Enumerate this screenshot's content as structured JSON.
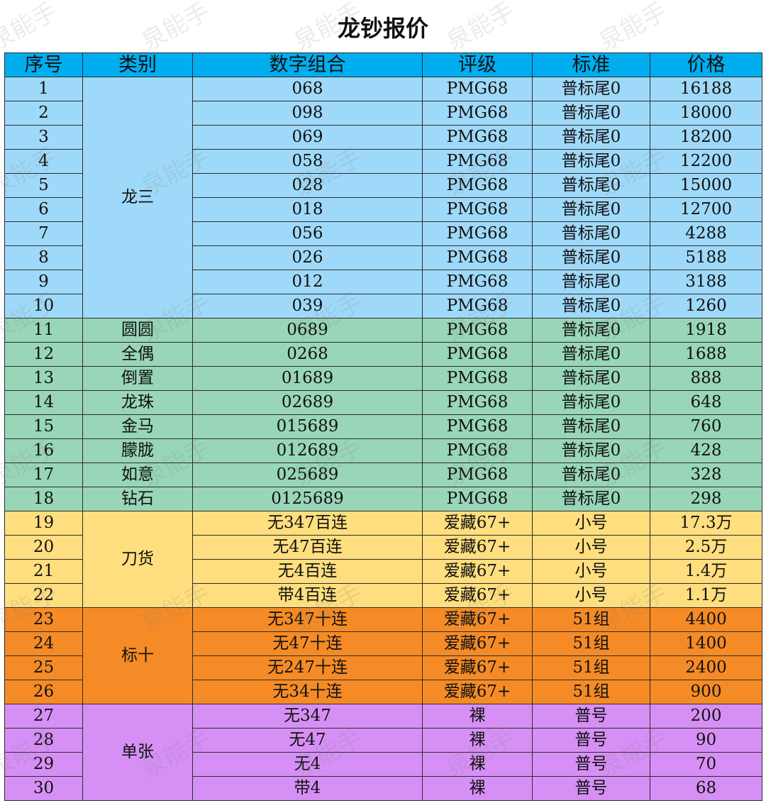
{
  "title": "龙钞报价",
  "watermark": "泉能手",
  "headers": [
    "序号",
    "类别",
    "数字组合",
    "评级",
    "标准",
    "价格"
  ],
  "colors": {
    "header": "#00aeef",
    "blue": "#9fd9f9",
    "green": "#98d6b7",
    "yellow": "#fede7e",
    "orange": "#f58b26",
    "purple": "#d690f5"
  },
  "groups": [
    {
      "category": "龙三",
      "color": "blue",
      "category_merged": true,
      "rows": [
        {
          "no": "1",
          "combo": "068",
          "grade": "PMG68",
          "standard": "普标尾0",
          "price": "16188"
        },
        {
          "no": "2",
          "combo": "098",
          "grade": "PMG68",
          "standard": "普标尾0",
          "price": "18000"
        },
        {
          "no": "3",
          "combo": "069",
          "grade": "PMG68",
          "standard": "普标尾0",
          "price": "18200"
        },
        {
          "no": "4",
          "combo": "058",
          "grade": "PMG68",
          "standard": "普标尾0",
          "price": "12200"
        },
        {
          "no": "5",
          "combo": "028",
          "grade": "PMG68",
          "standard": "普标尾0",
          "price": "15000"
        },
        {
          "no": "6",
          "combo": "018",
          "grade": "PMG68",
          "standard": "普标尾0",
          "price": "12700"
        },
        {
          "no": "7",
          "combo": "056",
          "grade": "PMG68",
          "standard": "普标尾0",
          "price": "4288"
        },
        {
          "no": "8",
          "combo": "026",
          "grade": "PMG68",
          "standard": "普标尾0",
          "price": "5188"
        },
        {
          "no": "9",
          "combo": "012",
          "grade": "PMG68",
          "standard": "普标尾0",
          "price": "3188"
        },
        {
          "no": "10",
          "combo": "039",
          "grade": "PMG68",
          "standard": "普标尾0",
          "price": "1260"
        }
      ]
    },
    {
      "category": "",
      "color": "green",
      "category_merged": false,
      "rows": [
        {
          "no": "11",
          "cat": "圆圆",
          "combo": "0689",
          "grade": "PMG68",
          "standard": "普标尾0",
          "price": "1918"
        },
        {
          "no": "12",
          "cat": "全偶",
          "combo": "0268",
          "grade": "PMG68",
          "standard": "普标尾0",
          "price": "1688"
        },
        {
          "no": "13",
          "cat": "倒置",
          "combo": "01689",
          "grade": "PMG68",
          "standard": "普标尾0",
          "price": "888"
        },
        {
          "no": "14",
          "cat": "龙珠",
          "combo": "02689",
          "grade": "PMG68",
          "standard": "普标尾0",
          "price": "648"
        },
        {
          "no": "15",
          "cat": "金马",
          "combo": "015689",
          "grade": "PMG68",
          "standard": "普标尾0",
          "price": "760"
        },
        {
          "no": "16",
          "cat": "朦胧",
          "combo": "012689",
          "grade": "PMG68",
          "standard": "普标尾0",
          "price": "428"
        },
        {
          "no": "17",
          "cat": "如意",
          "combo": "025689",
          "grade": "PMG68",
          "standard": "普标尾0",
          "price": "328"
        },
        {
          "no": "18",
          "cat": "钻石",
          "combo": "0125689",
          "grade": "PMG68",
          "standard": "普标尾0",
          "price": "298"
        }
      ]
    },
    {
      "category": "刀货",
      "color": "yellow",
      "category_merged": true,
      "rows": [
        {
          "no": "19",
          "combo": "无347百连",
          "grade": "爱藏67+",
          "standard": "小号",
          "price": "17.3万"
        },
        {
          "no": "20",
          "combo": "无47百连",
          "grade": "爱藏67+",
          "standard": "小号",
          "price": "2.5万"
        },
        {
          "no": "21",
          "combo": "无4百连",
          "grade": "爱藏67+",
          "standard": "小号",
          "price": "1.4万"
        },
        {
          "no": "22",
          "combo": "带4百连",
          "grade": "爱藏67+",
          "standard": "小号",
          "price": "1.1万"
        }
      ]
    },
    {
      "category": "标十",
      "color": "orange",
      "category_merged": true,
      "rows": [
        {
          "no": "23",
          "combo": "无347十连",
          "grade": "爱藏67+",
          "standard": "51组",
          "price": "4400"
        },
        {
          "no": "24",
          "combo": "无47十连",
          "grade": "爱藏67+",
          "standard": "51组",
          "price": "1400"
        },
        {
          "no": "25",
          "combo": "无247十连",
          "grade": "爱藏67+",
          "standard": "51组",
          "price": "2400"
        },
        {
          "no": "26",
          "combo": "无34十连",
          "grade": "爱藏67+",
          "standard": "51组",
          "price": "900"
        }
      ]
    },
    {
      "category": "单张",
      "color": "purple",
      "category_merged": true,
      "rows": [
        {
          "no": "27",
          "combo": "无347",
          "grade": "裸",
          "standard": "普号",
          "price": "200"
        },
        {
          "no": "28",
          "combo": "无47",
          "grade": "裸",
          "standard": "普号",
          "price": "90"
        },
        {
          "no": "29",
          "combo": "无4",
          "grade": "裸",
          "standard": "普号",
          "price": "70"
        },
        {
          "no": "30",
          "combo": "带4",
          "grade": "裸",
          "standard": "普号",
          "price": "68"
        }
      ]
    }
  ]
}
